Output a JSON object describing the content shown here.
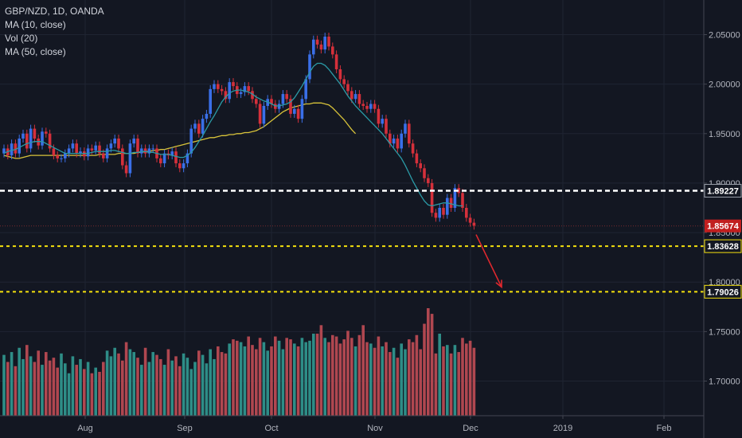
{
  "legend": {
    "symbol": "GBP/NZD, 1D, OANDA",
    "ma10": "MA (10, close)",
    "vol": "Vol (20)",
    "ma50": "MA (50, close)"
  },
  "colors": {
    "background": "#131722",
    "up": "#3a6fe8",
    "down": "#d5303b",
    "ma10": "#2b9ba7",
    "ma50": "#d8c33a",
    "vol_up": "#2e8d87",
    "vol_down": "#b04750",
    "level_white": "#ffffff",
    "level_yellow": "#f5e10d",
    "arrow": "#e0282e",
    "last_price_bg": "#c11f1f"
  },
  "chart_data": {
    "type": "candlestick",
    "ylim": [
      1.665,
      2.085
    ],
    "y_ticks": [
      "2.05000",
      "2.00000",
      "1.95000",
      "1.90000",
      "1.85000",
      "1.80000",
      "1.75000",
      "1.70000"
    ],
    "x_ticks": [
      "Aug",
      "Sep",
      "Oct",
      "Nov",
      "Dec",
      "2019",
      "Feb"
    ],
    "last_price": "1.85674",
    "levels": [
      {
        "value": 1.89227,
        "label": "1.89227",
        "style": "white-dashed"
      },
      {
        "value": 1.83628,
        "label": "1.83628",
        "style": "yellow-dashed"
      },
      {
        "value": 1.79026,
        "label": "1.79026",
        "style": "yellow-dashed"
      }
    ],
    "closes": [
      1.935,
      1.928,
      1.94,
      1.93,
      1.945,
      1.95,
      1.935,
      1.955,
      1.945,
      1.938,
      1.952,
      1.95,
      1.935,
      1.928,
      1.925,
      1.925,
      1.93,
      1.935,
      1.94,
      1.93,
      1.932,
      1.927,
      1.935,
      1.933,
      1.938,
      1.93,
      1.925,
      1.935,
      1.94,
      1.945,
      1.935,
      1.918,
      1.91,
      1.94,
      1.945,
      1.93,
      1.935,
      1.93,
      1.935,
      1.935,
      1.925,
      1.92,
      1.93,
      1.928,
      1.932,
      1.92,
      1.915,
      1.92,
      1.93,
      1.955,
      1.96,
      1.95,
      1.965,
      1.97,
      1.995,
      2.0,
      1.995,
      1.993,
      1.985,
      2.002,
      1.998,
      1.99,
      1.992,
      1.998,
      1.993,
      1.985,
      1.98,
      1.96,
      1.978,
      1.985,
      1.98,
      1.975,
      1.98,
      1.99,
      1.985,
      1.97,
      1.975,
      1.965,
      1.985,
      2.005,
      2.03,
      2.045,
      2.04,
      2.035,
      2.048,
      2.038,
      2.03,
      2.015,
      2.005,
      2.0,
      1.993,
      1.985,
      1.99,
      1.98,
      1.978,
      1.975,
      1.98,
      1.975,
      1.96,
      1.965,
      1.95,
      1.94,
      1.945,
      1.935,
      1.95,
      1.96,
      1.94,
      1.93,
      1.92,
      1.915,
      1.905,
      1.9,
      1.87,
      1.865,
      1.875,
      1.868,
      1.885,
      1.875,
      1.895,
      1.89,
      1.875,
      1.865,
      1.86,
      1.857
    ],
    "vol_title": "Vol (20)",
    "volume": [
      43,
      38,
      45,
      35,
      48,
      40,
      50,
      42,
      38,
      46,
      36,
      45,
      39,
      41,
      34,
      44,
      37,
      30,
      42,
      36,
      40,
      33,
      38,
      30,
      34,
      31,
      38,
      46,
      42,
      48,
      44,
      39,
      52,
      47,
      45,
      41,
      36,
      48,
      38,
      45,
      43,
      40,
      36,
      47,
      39,
      42,
      35,
      44,
      41,
      33,
      38,
      46,
      43,
      37,
      47,
      40,
      49,
      45,
      44,
      51,
      54,
      53,
      52,
      49,
      56,
      50,
      47,
      55,
      52,
      46,
      49,
      56,
      53,
      47,
      55,
      54,
      51,
      49,
      55,
      52,
      53,
      58,
      58,
      64,
      55,
      52,
      57,
      56,
      51,
      54,
      60,
      55,
      49,
      57,
      64,
      52,
      51,
      48,
      56,
      49,
      52,
      45,
      48,
      41,
      51,
      47,
      54,
      52,
      57,
      47,
      65,
      76,
      72,
      44,
      58,
      49,
      50,
      44,
      50,
      45,
      55,
      51,
      53,
      48
    ],
    "ma10": [
      1.93,
      1.932,
      1.933,
      1.934,
      1.936,
      1.938,
      1.94,
      1.941,
      1.942,
      1.942,
      1.942,
      1.94,
      1.938,
      1.936,
      1.934,
      1.932,
      1.93,
      1.93,
      1.93,
      1.93,
      1.93,
      1.93,
      1.93,
      1.931,
      1.932,
      1.932,
      1.932,
      1.932,
      1.933,
      1.933,
      1.932,
      1.931,
      1.93,
      1.93,
      1.931,
      1.931,
      1.932,
      1.932,
      1.931,
      1.931,
      1.93,
      1.929,
      1.929,
      1.929,
      1.928,
      1.927,
      1.926,
      1.926,
      1.928,
      1.931,
      1.936,
      1.942,
      1.948,
      1.955,
      1.962,
      1.968,
      1.975,
      1.982,
      1.987,
      1.991,
      1.993,
      1.994,
      1.994,
      1.993,
      1.992,
      1.99,
      1.987,
      1.985,
      1.983,
      1.982,
      1.98,
      1.978,
      1.978,
      1.979,
      1.98,
      1.982,
      1.986,
      1.992,
      1.998,
      2.005,
      2.012,
      2.018,
      2.021,
      2.021,
      2.019,
      2.015,
      2.01,
      2.005,
      2.0,
      1.994,
      1.988,
      1.983,
      1.978,
      1.974,
      1.97,
      1.966,
      1.962,
      1.958,
      1.954,
      1.95,
      1.945,
      1.94,
      1.935,
      1.93,
      1.925,
      1.918,
      1.91,
      1.902,
      1.895,
      1.888,
      1.882,
      1.878,
      1.877,
      1.878,
      1.879,
      1.88,
      1.88,
      1.879,
      1.878,
      1.877,
      1.877
    ],
    "ma50": [
      1.928,
      1.927,
      1.926,
      1.925,
      1.925,
      1.926,
      1.927,
      1.928,
      1.928,
      1.928,
      1.928,
      1.928,
      1.928,
      1.928,
      1.928,
      1.928,
      1.928,
      1.928,
      1.928,
      1.928,
      1.928,
      1.928,
      1.928,
      1.928,
      1.928,
      1.929,
      1.929,
      1.929,
      1.929,
      1.929,
      1.93,
      1.93,
      1.93,
      1.93,
      1.93,
      1.931,
      1.931,
      1.932,
      1.932,
      1.933,
      1.933,
      1.934,
      1.934,
      1.935,
      1.936,
      1.937,
      1.938,
      1.939,
      1.94,
      1.941,
      1.942,
      1.943,
      1.944,
      1.945,
      1.946,
      1.946,
      1.947,
      1.948,
      1.948,
      1.949,
      1.949,
      1.95,
      1.95,
      1.951,
      1.951,
      1.952,
      1.953,
      1.955,
      1.957,
      1.96,
      1.963,
      1.966,
      1.969,
      1.972,
      1.974,
      1.976,
      1.977,
      1.978,
      1.979,
      1.98,
      1.98,
      1.981,
      1.981,
      1.981,
      1.98,
      1.979,
      1.976,
      1.972,
      1.968,
      1.964,
      1.959,
      1.954,
      1.95
    ]
  }
}
